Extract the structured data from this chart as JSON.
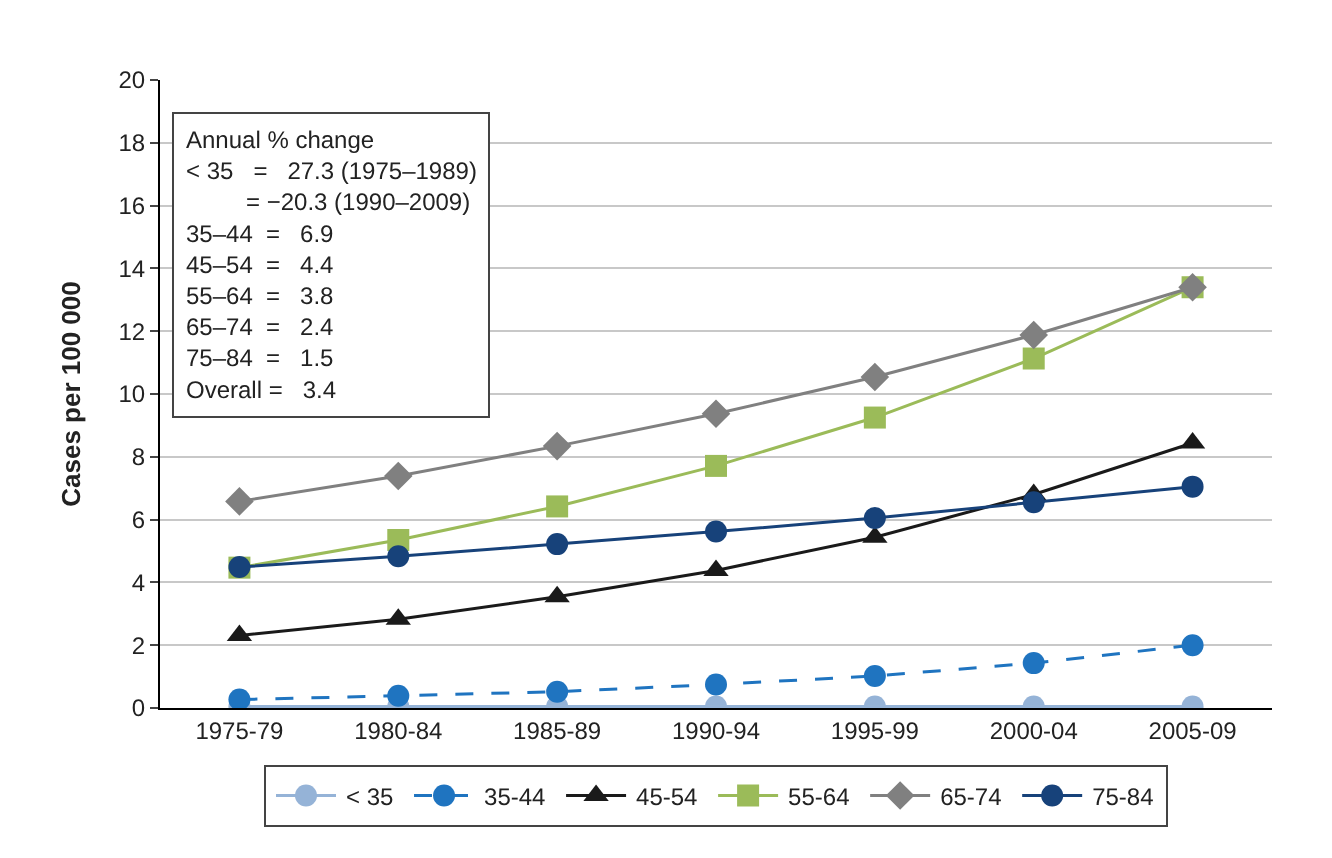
{
  "chart_data": {
    "type": "line",
    "ylabel": "Cases per 100 000",
    "categories": [
      "1975-79",
      "1980-84",
      "1985-89",
      "1990-94",
      "1995-99",
      "2000-04",
      "2005-09"
    ],
    "series": [
      {
        "name": "< 35",
        "color": "#95b3d7",
        "marker": "circle",
        "line_style": "solid",
        "values": [
          0.05,
          0.05,
          0.05,
          0.05,
          0.05,
          0.05,
          0.05
        ]
      },
      {
        "name": "35-44",
        "color": "#1f74c0",
        "marker": "circle",
        "line_style": "dashed",
        "values": [
          0.27,
          0.39,
          0.52,
          0.75,
          1.02,
          1.43,
          2.0
        ]
      },
      {
        "name": "45-54",
        "color": "#1a1a1a",
        "marker": "triangle",
        "line_style": "solid",
        "values": [
          2.31,
          2.83,
          3.54,
          4.38,
          5.44,
          6.8,
          8.44
        ]
      },
      {
        "name": "55-64",
        "color": "#9bbb59",
        "marker": "square",
        "line_style": "solid",
        "values": [
          4.47,
          5.35,
          6.42,
          7.71,
          9.25,
          11.13,
          13.4
        ]
      },
      {
        "name": "65-74",
        "color": "#808080",
        "marker": "diamond",
        "line_style": "solid",
        "values": [
          6.58,
          7.39,
          8.34,
          9.37,
          10.54,
          11.88,
          13.4
        ]
      },
      {
        "name": "75-84",
        "color": "#17427a",
        "marker": "circle",
        "line_style": "solid",
        "values": [
          4.49,
          4.83,
          5.22,
          5.62,
          6.05,
          6.55,
          7.05
        ]
      }
    ],
    "ylim": [
      0,
      20
    ],
    "yticks": [
      0,
      2,
      4,
      6,
      8,
      10,
      12,
      14,
      16,
      18,
      20
    ],
    "grid": "y",
    "legend": "bottom",
    "annotations": [
      "Annual % change\n< 35   =   27.3 (1975–1989)\n         = −20.3 (1990–2009)\n35–44  =   6.9\n45–54  =   4.4\n55–64  =   3.8\n65–74  =   2.4\n75–84  =   1.5\nOverall =   3.4"
    ]
  }
}
